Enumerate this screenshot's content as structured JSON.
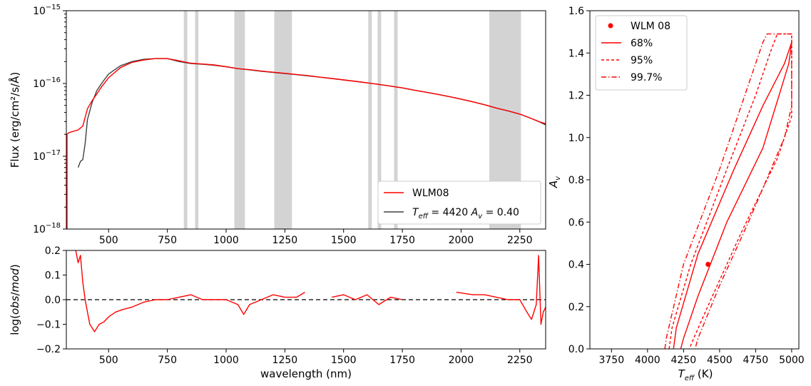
{
  "colors": {
    "obs": "#ff0000",
    "model": "#404040",
    "band": "#d3d3d3",
    "zero": "#000000"
  },
  "chart_data": [
    {
      "id": "spectrum",
      "type": "line",
      "xlim": [
        320,
        2360
      ],
      "ylim": [
        1e-18,
        1e-15
      ],
      "yscale": "log",
      "ylabel": "Flux (erg/cm²/s/Å)",
      "x_ticks": [
        "500",
        "750",
        "1000",
        "1250",
        "1500",
        "1750",
        "2000",
        "2250"
      ],
      "x_tick_values": [
        500,
        750,
        1000,
        1250,
        1500,
        1750,
        2000,
        2250
      ],
      "y_ticks": [
        {
          "base": "10",
          "exp": "−15",
          "value": 1e-15
        },
        {
          "base": "10",
          "exp": "−16",
          "value": 1e-16
        },
        {
          "base": "10",
          "exp": "−17",
          "value": 1e-17
        },
        {
          "base": "10",
          "exp": "−18",
          "value": 1e-18
        }
      ],
      "masked_bands": [
        [
          820,
          835
        ],
        [
          868,
          882
        ],
        [
          1035,
          1080
        ],
        [
          1205,
          1280
        ],
        [
          1605,
          1620
        ],
        [
          1645,
          1660
        ],
        [
          1715,
          1730
        ],
        [
          2120,
          2255
        ]
      ],
      "legend": {
        "position": "lower-right",
        "entries": [
          "WLM08",
          "T_eff = 4420 A_v = 0.40"
        ]
      },
      "series": [
        {
          "name": "WLM08",
          "x": [
            322,
            330,
            350,
            370,
            390,
            410,
            430,
            450,
            470,
            500,
            550,
            600,
            650,
            700,
            750,
            800,
            850,
            900,
            950,
            1000,
            1050,
            1100,
            1150,
            1200,
            1250,
            1300,
            1350,
            1400,
            1450,
            1500,
            1550,
            1600,
            1650,
            1700,
            1750,
            1800,
            1850,
            1900,
            1950,
            2000,
            2050,
            2100,
            2150,
            2200,
            2250,
            2300,
            2330,
            2360
          ],
          "y": [
            2e-17,
            2.1e-17,
            2.2e-17,
            2.3e-17,
            2.6e-17,
            4.5e-17,
            5.8e-17,
            7.2e-17,
            9e-17,
            1.2e-16,
            1.65e-16,
            1.95e-16,
            2.1e-16,
            2.2e-16,
            2.2e-16,
            2.05e-16,
            1.9e-16,
            1.85e-16,
            1.8e-16,
            1.7e-16,
            1.6e-16,
            1.55e-16,
            1.48e-16,
            1.43e-16,
            1.38e-16,
            1.33e-16,
            1.28e-16,
            1.22e-16,
            1.17e-16,
            1.12e-16,
            1.07e-16,
            1.02e-16,
            9.7e-17,
            9.2e-17,
            8.7e-17,
            8.1e-17,
            7.6e-17,
            7.1e-17,
            6.6e-17,
            6.1e-17,
            5.6e-17,
            5.1e-17,
            4.6e-17,
            4.2e-17,
            3.8e-17,
            3.3e-17,
            3e-17,
            2.8e-17
          ]
        },
        {
          "name": "T_eff = 4420 A_v = 0.40",
          "x": [
            370,
            380,
            390,
            400,
            410,
            430,
            450,
            470,
            500,
            550,
            600,
            650,
            700,
            750,
            800,
            850,
            900,
            950,
            1000,
            1050,
            1100,
            1150,
            1200,
            1250,
            1300,
            1350,
            1400,
            1450,
            1500,
            1550,
            1600,
            1650,
            1700,
            1750,
            1800,
            1850,
            1900,
            1950,
            2000,
            2050,
            2100,
            2150,
            2200,
            2250,
            2300,
            2330,
            2360
          ],
          "y": [
            7e-18,
            8.5e-18,
            9e-18,
            1.5e-17,
            3.2e-17,
            5.5e-17,
            8e-17,
            1e-16,
            1.35e-16,
            1.75e-16,
            2e-16,
            2.15e-16,
            2.2e-16,
            2.2e-16,
            2e-16,
            1.88e-16,
            1.84e-16,
            1.78e-16,
            1.7e-16,
            1.6e-16,
            1.54e-16,
            1.47e-16,
            1.42e-16,
            1.37e-16,
            1.32e-16,
            1.27e-16,
            1.22e-16,
            1.17e-16,
            1.12e-16,
            1.07e-16,
            1.02e-16,
            9.7e-17,
            9.2e-17,
            8.7e-17,
            8.1e-17,
            7.6e-17,
            7.1e-17,
            6.6e-17,
            6.1e-17,
            5.6e-17,
            5.1e-17,
            4.6e-17,
            4.2e-17,
            3.8e-17,
            3.3e-17,
            3e-17,
            2.7e-17
          ]
        }
      ]
    },
    {
      "id": "residual",
      "type": "line",
      "xlim": [
        320,
        2360
      ],
      "ylim": [
        -0.2,
        0.2
      ],
      "xlabel": "wavelength (nm)",
      "ylabel": "log(obs/mod)",
      "x_ticks": [
        "500",
        "750",
        "1000",
        "1250",
        "1500",
        "1750",
        "2000",
        "2250"
      ],
      "x_tick_values": [
        500,
        750,
        1000,
        1250,
        1500,
        1750,
        2000,
        2250
      ],
      "y_ticks": [
        "0.2",
        "0.1",
        "0.0",
        "−0.1",
        "−0.2"
      ],
      "y_tick_values": [
        0.2,
        0.1,
        0.0,
        -0.1,
        -0.2
      ],
      "zero_line": 0.0,
      "segments": [
        {
          "x": [
            360,
            370,
            380,
            390,
            400,
            410,
            420,
            440,
            460,
            480,
            500,
            530,
            560,
            600,
            650,
            700,
            750,
            800,
            850,
            900,
            950,
            1000,
            1050,
            1075,
            1100,
            1150,
            1200,
            1250,
            1300,
            1335
          ],
          "y": [
            0.2,
            0.15,
            0.18,
            0.07,
            0.0,
            -0.05,
            -0.1,
            -0.13,
            -0.1,
            -0.09,
            -0.07,
            -0.05,
            -0.04,
            -0.03,
            -0.01,
            0.0,
            0.0,
            0.01,
            0.02,
            0.0,
            0.0,
            0.0,
            -0.02,
            -0.06,
            -0.02,
            0.0,
            0.02,
            0.01,
            0.01,
            0.03
          ]
        },
        {
          "x": [
            1450,
            1500,
            1550,
            1600,
            1650,
            1700,
            1750
          ],
          "y": [
            0.01,
            0.02,
            0.0,
            0.02,
            -0.02,
            0.01,
            0.0
          ]
        },
        {
          "x": [
            1980,
            2050,
            2100,
            2150,
            2200,
            2250,
            2280,
            2300,
            2320,
            2330,
            2340,
            2350,
            2360
          ],
          "y": [
            0.03,
            0.02,
            0.02,
            0.01,
            0.0,
            0.0,
            -0.05,
            -0.08,
            -0.02,
            0.18,
            -0.1,
            -0.05,
            -0.03
          ]
        }
      ]
    },
    {
      "id": "contours",
      "type": "line",
      "xlim": [
        3600,
        5050
      ],
      "ylim": [
        0.0,
        1.6
      ],
      "xlabel": "T_eff (K)",
      "ylabel": "A_v",
      "x_ticks": [
        "3750",
        "4000",
        "4250",
        "4500",
        "4750",
        "5000"
      ],
      "x_tick_values": [
        3750,
        4000,
        4250,
        4500,
        4750,
        5000
      ],
      "y_ticks": [
        "0.0",
        "0.2",
        "0.4",
        "0.6",
        "0.8",
        "1.0",
        "1.2",
        "1.4",
        "1.6"
      ],
      "y_tick_values": [
        0.0,
        0.2,
        0.4,
        0.6,
        0.8,
        1.0,
        1.2,
        1.4,
        1.6
      ],
      "legend": {
        "position": "upper-left",
        "entries": [
          "WLM 08",
          "68%",
          "95%",
          "99.7%"
        ]
      },
      "best_fit": {
        "x": 4420,
        "y": 0.4
      },
      "series": [
        {
          "name": "68%",
          "style": "solid",
          "x": [
            4180,
            4200,
            4350,
            4600,
            4800,
            4950,
            5000,
            4990,
            4980,
            4800,
            4550,
            4350,
            4250,
            4230
          ],
          "y": [
            0.0,
            0.1,
            0.45,
            0.85,
            1.15,
            1.35,
            1.45,
            1.4,
            1.35,
            0.95,
            0.6,
            0.25,
            0.05,
            0.0
          ]
        },
        {
          "name": "95%",
          "style": "dashed",
          "x": [
            4150,
            4170,
            4300,
            4550,
            4750,
            4850,
            4900,
            5000,
            5000,
            4900,
            4650,
            4450,
            4320,
            4290
          ],
          "y": [
            0.0,
            0.1,
            0.4,
            0.85,
            1.2,
            1.4,
            1.49,
            1.49,
            1.1,
            0.9,
            0.55,
            0.25,
            0.05,
            0.0
          ]
        },
        {
          "name": "99.7%",
          "style": "dashdot",
          "x": [
            4120,
            4130,
            4250,
            4500,
            4700,
            4800,
            4830,
            5000,
            5000,
            4950,
            4700,
            4500,
            4350,
            4330
          ],
          "y": [
            0.0,
            0.05,
            0.4,
            0.85,
            1.25,
            1.45,
            1.49,
            1.49,
            1.15,
            1.0,
            0.6,
            0.3,
            0.05,
            0.0
          ]
        }
      ]
    }
  ]
}
